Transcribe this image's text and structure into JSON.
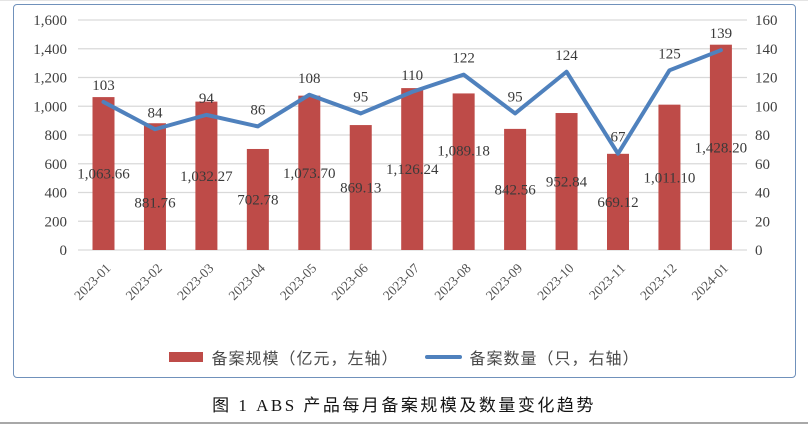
{
  "figure": {
    "caption": "图 1  ABS 产品每月备案规模及数量变化趋势"
  },
  "chart_data": {
    "type": "bar",
    "subtype": "combo-bar-line-dual-axis",
    "title": "",
    "categories": [
      "2023-01",
      "2023-02",
      "2023-03",
      "2023-04",
      "2023-05",
      "2023-06",
      "2023-07",
      "2023-08",
      "2023-09",
      "2023-10",
      "2023-11",
      "2023-12",
      "2024-01"
    ],
    "series": [
      {
        "name": "备案规模（亿元，左轴）",
        "type": "bar",
        "axis": "left",
        "color": "#be4b48",
        "values": [
          1063.66,
          881.76,
          1032.27,
          702.78,
          1073.7,
          869.13,
          1126.24,
          1089.18,
          842.56,
          952.84,
          669.12,
          1011.1,
          1428.2
        ],
        "labels": [
          "1,063.66",
          "881.76",
          "1,032.27",
          "702.78",
          "1,073.70",
          "869.13",
          "1,126.24",
          "1,089.18",
          "842.56",
          "952.84",
          "669.12",
          "1,011.10",
          "1,428.20"
        ]
      },
      {
        "name": "备案数量（只，右轴）",
        "type": "line",
        "axis": "right",
        "color": "#4f81bd",
        "values": [
          103,
          84,
          94,
          86,
          108,
          95,
          110,
          122,
          95,
          124,
          67,
          125,
          139
        ],
        "labels": [
          "103",
          "84",
          "94",
          "86",
          "108",
          "95",
          "110",
          "122",
          "95",
          "124",
          "67",
          "125",
          "139"
        ]
      }
    ],
    "left_axis": {
      "min": 0,
      "max": 1600,
      "step": 200,
      "tick_labels": [
        "0",
        "200",
        "400",
        "600",
        "800",
        "1,000",
        "1,200",
        "1,400",
        "1,600"
      ]
    },
    "right_axis": {
      "min": 0,
      "max": 160,
      "step": 20,
      "tick_labels": [
        "0",
        "20",
        "40",
        "60",
        "80",
        "100",
        "120",
        "140",
        "160"
      ]
    },
    "grid": true,
    "legend_position": "bottom",
    "bar_label_dy": [
      0,
      16,
      0,
      0,
      0,
      0,
      0,
      -21,
      0,
      0,
      0,
      0,
      0
    ],
    "colors": {
      "bar": "#be4b48",
      "line": "#4f81bd",
      "grid": "#d9d9d9",
      "tick_text": "#3f3f3f",
      "data_label_text": "#3a3a3a",
      "border": "#7091bb"
    }
  }
}
